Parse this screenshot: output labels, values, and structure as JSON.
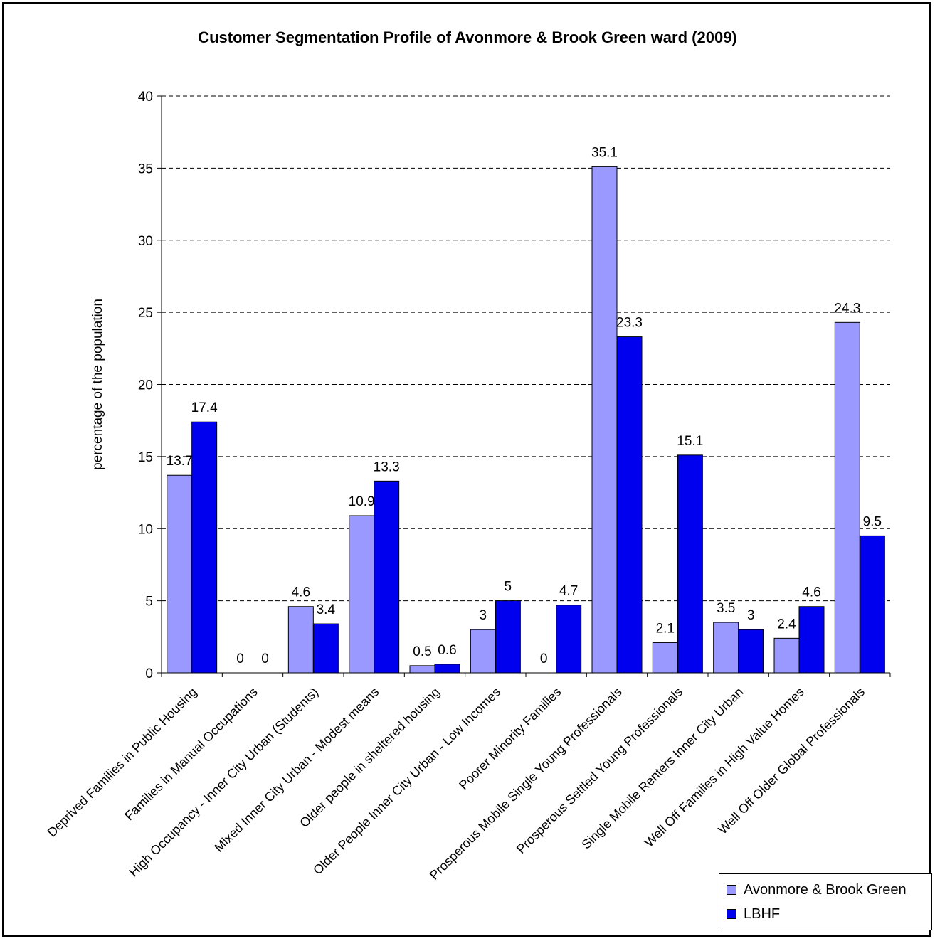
{
  "chart_data": {
    "type": "bar",
    "title": "Customer Segmentation Profile of Avonmore & Brook Green ward (2009)",
    "xlabel": "",
    "ylabel": "percentage of the population",
    "ylim": [
      0,
      40
    ],
    "yticks": [
      0,
      5,
      10,
      15,
      20,
      25,
      30,
      35,
      40
    ],
    "grid": "horizontal dashed",
    "legend_position": "bottom-right",
    "categories": [
      "Deprived Families in Public Housing",
      "Families in Manual Occupations",
      "High Occupancy - Inner City Urban (Students)",
      "Mixed Inner City Urban - Modest means",
      "Older people in sheltered housing",
      "Older People Inner City Urban - Low Incomes",
      "Poorer Minority Families",
      "Prosperous Mobile Single Young Professionals",
      "Prosperous Settled Young Professionals",
      "Single Mobile Renters Inner City Urban",
      "Well Off Families in High Value Homes",
      "Well Off Older Global Professionals"
    ],
    "series": [
      {
        "name": "Avonmore & Brook Green",
        "color": "#9999ff",
        "values": [
          13.7,
          0,
          4.6,
          10.9,
          0.5,
          3,
          0,
          35.1,
          2.1,
          3.5,
          2.4,
          24.3
        ],
        "labels": [
          "13.7",
          "0",
          "4.6",
          "10.9",
          "0.5",
          "3",
          "0",
          "35.1",
          "2.1",
          "3.5",
          "2.4",
          "24.3"
        ]
      },
      {
        "name": "LBHF",
        "color": "#0000ee",
        "values": [
          17.4,
          0,
          3.4,
          13.3,
          0.6,
          5,
          4.7,
          23.3,
          15.1,
          3,
          4.6,
          9.5
        ],
        "labels": [
          "17.4",
          "0",
          "3.4",
          "13.3",
          "0.6",
          "5",
          "4.7",
          "23.3",
          "15.1",
          "3",
          "4.6",
          "9.5"
        ]
      }
    ]
  }
}
